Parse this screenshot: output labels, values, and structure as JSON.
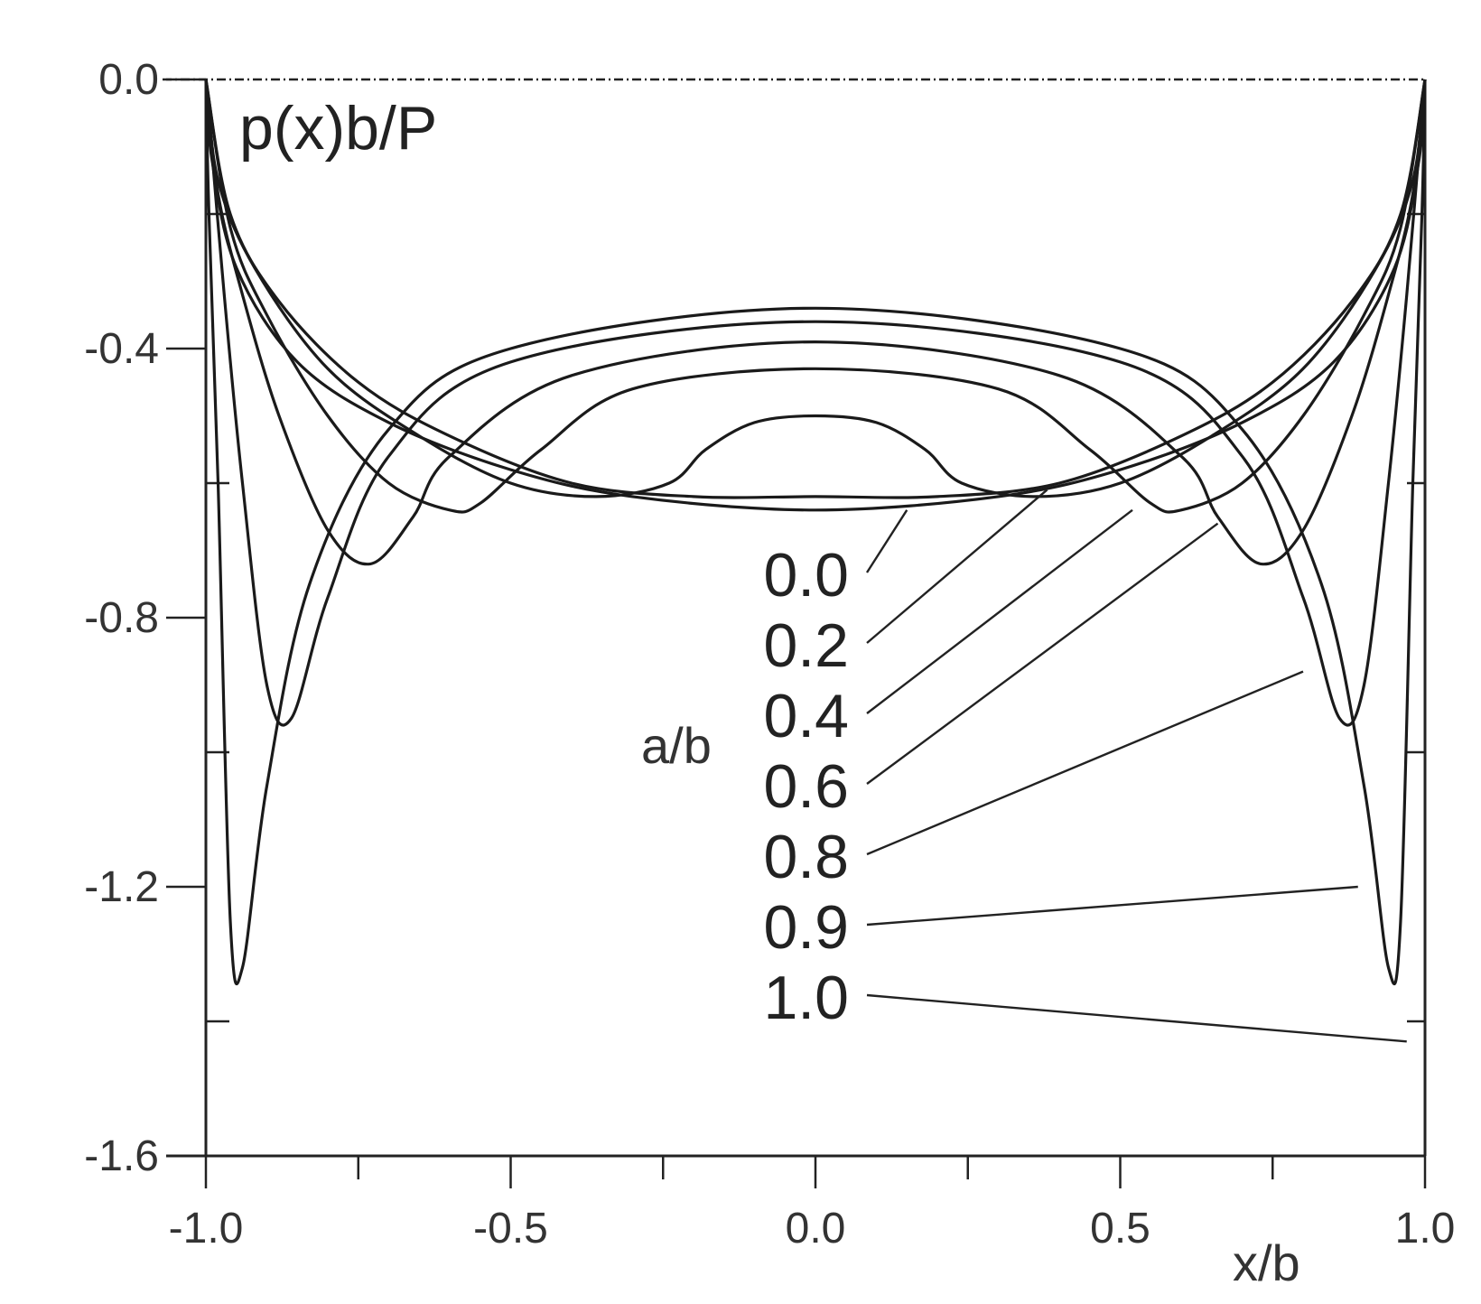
{
  "chart_data": {
    "type": "line",
    "title": "p(x)b/P",
    "xlabel": "x/b",
    "ylabel": "p(x)b/P",
    "xlim": [
      -1.0,
      1.0
    ],
    "ylim": [
      -1.6,
      0.0
    ],
    "x_ticks": [
      "-1.0",
      "-0.5",
      "0.0",
      "0.5",
      "1.0"
    ],
    "y_ticks": [
      "0.0",
      "-0.4",
      "-0.8",
      "-1.2",
      "-1.6"
    ],
    "legend_title": "a/b",
    "series": [
      {
        "name": "0.0",
        "points": [
          [
            0.0,
            -0.64
          ],
          [
            0.3,
            -0.62
          ],
          [
            0.5,
            -0.58
          ],
          [
            0.7,
            -0.51
          ],
          [
            0.85,
            -0.42
          ],
          [
            0.95,
            -0.28
          ],
          [
            0.99,
            -0.12
          ],
          [
            1.0,
            0.0
          ]
        ]
      },
      {
        "name": "0.2",
        "points": [
          [
            0.0,
            -0.62
          ],
          [
            0.2,
            -0.62
          ],
          [
            0.4,
            -0.6
          ],
          [
            0.6,
            -0.53
          ],
          [
            0.75,
            -0.45
          ],
          [
            0.88,
            -0.33
          ],
          [
            0.96,
            -0.2
          ],
          [
            1.0,
            0.0
          ]
        ]
      },
      {
        "name": "0.4",
        "points": [
          [
            0.0,
            -0.5
          ],
          [
            0.1,
            -0.51
          ],
          [
            0.18,
            -0.55
          ],
          [
            0.24,
            -0.6
          ],
          [
            0.36,
            -0.62
          ],
          [
            0.5,
            -0.6
          ],
          [
            0.65,
            -0.53
          ],
          [
            0.8,
            -0.43
          ],
          [
            0.92,
            -0.28
          ],
          [
            0.98,
            -0.15
          ],
          [
            1.0,
            0.0
          ]
        ]
      },
      {
        "name": "0.6",
        "points": [
          [
            0.0,
            -0.43
          ],
          [
            0.3,
            -0.46
          ],
          [
            0.45,
            -0.55
          ],
          [
            0.55,
            -0.63
          ],
          [
            0.6,
            -0.64
          ],
          [
            0.7,
            -0.6
          ],
          [
            0.8,
            -0.5
          ],
          [
            0.9,
            -0.35
          ],
          [
            0.96,
            -0.22
          ],
          [
            1.0,
            0.0
          ]
        ]
      },
      {
        "name": "0.8",
        "points": [
          [
            0.0,
            -0.39
          ],
          [
            0.4,
            -0.44
          ],
          [
            0.6,
            -0.56
          ],
          [
            0.66,
            -0.65
          ],
          [
            0.73,
            -0.72
          ],
          [
            0.8,
            -0.67
          ],
          [
            0.88,
            -0.5
          ],
          [
            0.94,
            -0.32
          ],
          [
            0.98,
            -0.17
          ],
          [
            1.0,
            0.0
          ]
        ]
      },
      {
        "name": "0.9",
        "points": [
          [
            0.0,
            -0.36
          ],
          [
            0.5,
            -0.42
          ],
          [
            0.7,
            -0.56
          ],
          [
            0.8,
            -0.77
          ],
          [
            0.86,
            -0.95
          ],
          [
            0.9,
            -0.9
          ],
          [
            0.94,
            -0.6
          ],
          [
            0.97,
            -0.32
          ],
          [
            1.0,
            0.0
          ]
        ]
      },
      {
        "name": "1.0",
        "points": [
          [
            0.0,
            -0.34
          ],
          [
            0.5,
            -0.4
          ],
          [
            0.7,
            -0.52
          ],
          [
            0.83,
            -0.75
          ],
          [
            0.9,
            -1.05
          ],
          [
            0.94,
            -1.32
          ],
          [
            0.96,
            -1.25
          ],
          [
            0.98,
            -0.6
          ],
          [
            0.995,
            -0.2
          ],
          [
            1.0,
            0.0
          ]
        ]
      }
    ],
    "grid": false,
    "legend": "inline labels with leader lines, center"
  }
}
